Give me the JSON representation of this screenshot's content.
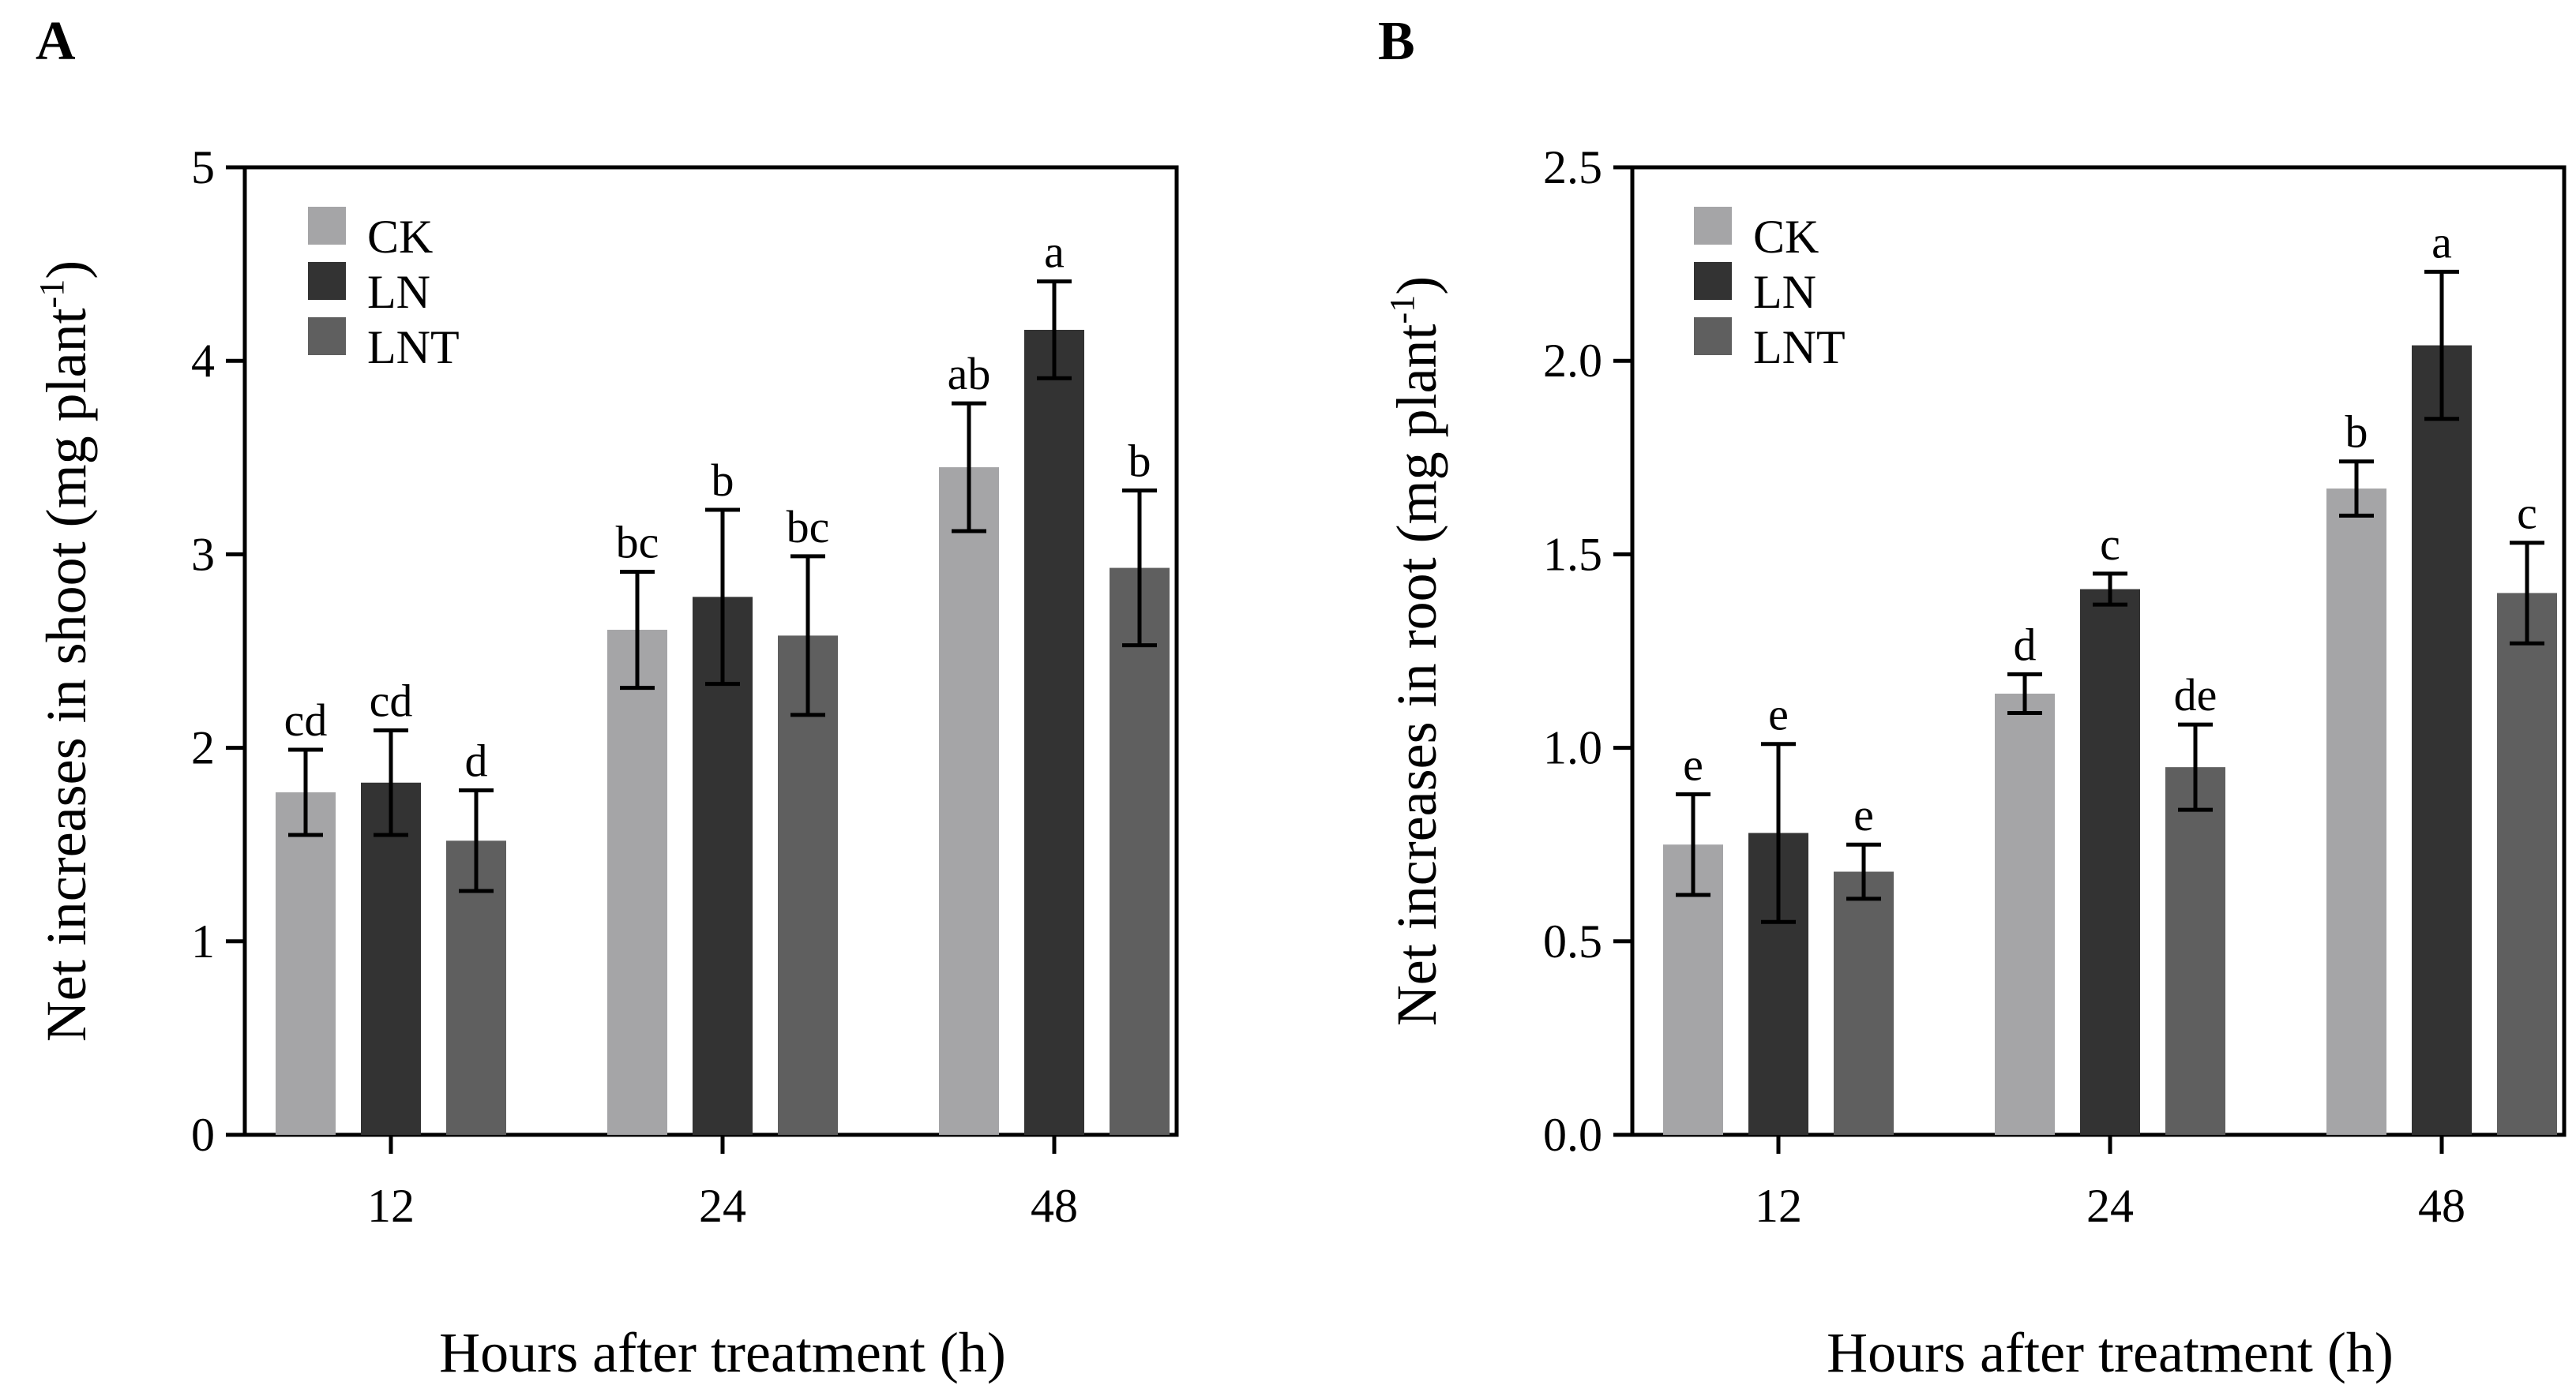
{
  "chart_data": [
    {
      "type": "bar",
      "panel_label": "A",
      "categories": [
        "12",
        "24",
        "48"
      ],
      "series": [
        {
          "name": "CK",
          "color": "#a5a5a7",
          "values": [
            1.77,
            2.61,
            3.45
          ],
          "errors": [
            0.22,
            0.3,
            0.33
          ],
          "labels": [
            "cd",
            "bc",
            "ab"
          ]
        },
        {
          "name": "LN",
          "color": "#333333",
          "values": [
            1.82,
            2.78,
            4.16
          ],
          "errors": [
            0.27,
            0.45,
            0.25
          ],
          "labels": [
            "cd",
            "b",
            "a"
          ]
        },
        {
          "name": "LNT",
          "color": "#5f5f5f",
          "values": [
            1.52,
            2.58,
            2.93
          ],
          "errors": [
            0.26,
            0.41,
            0.4
          ],
          "labels": [
            "d",
            "bc",
            "b"
          ]
        }
      ],
      "xlabel": "Hours after treatment (h)",
      "ylabel": "Net increases in shoot (mg plant",
      "ylabel_sup": "-1",
      "ylabel_close": ")",
      "ylim": [
        0,
        5
      ],
      "yticks": [
        "0",
        "1",
        "2",
        "3",
        "4",
        "5"
      ],
      "legend": "top-left",
      "grid": false
    },
    {
      "type": "bar",
      "panel_label": "B",
      "categories": [
        "12",
        "24",
        "48"
      ],
      "series": [
        {
          "name": "CK",
          "color": "#a5a5a7",
          "values": [
            0.75,
            1.14,
            1.67
          ],
          "errors": [
            0.13,
            0.05,
            0.07
          ],
          "labels": [
            "e",
            "d",
            "b"
          ]
        },
        {
          "name": "LN",
          "color": "#333333",
          "values": [
            0.78,
            1.41,
            2.04
          ],
          "errors": [
            0.23,
            0.04,
            0.19
          ],
          "labels": [
            "e",
            "c",
            "a"
          ]
        },
        {
          "name": "LNT",
          "color": "#5f5f5f",
          "values": [
            0.68,
            0.95,
            1.4
          ],
          "errors": [
            0.07,
            0.11,
            0.13
          ],
          "labels": [
            "e",
            "de",
            "c"
          ]
        }
      ],
      "xlabel": "Hours after treatment (h)",
      "ylabel": "Net increases in root (mg plant",
      "ylabel_sup": "-1",
      "ylabel_close": ")",
      "ylim": [
        0,
        2.5
      ],
      "yticks": [
        "0.0",
        "0.5",
        "1.0",
        "1.5",
        "2.0",
        "2.5"
      ],
      "legend": "top-left",
      "grid": false
    }
  ]
}
